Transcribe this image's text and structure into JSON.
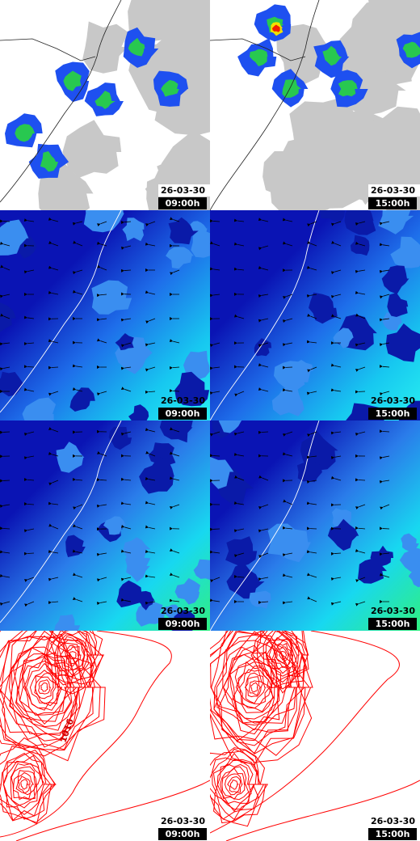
{
  "panels": [
    {
      "date": "26-03-30",
      "time": "09:00h"
    },
    {
      "date": "26-03-30",
      "time": "15:00h"
    },
    {
      "date": "26-03-30",
      "time": "09:00h"
    },
    {
      "date": "26-03-30",
      "time": "15:00h"
    },
    {
      "date": "26-03-30",
      "time": "09:00h"
    },
    {
      "date": "26-03-30",
      "time": "15:00h"
    },
    {
      "date": "26-03-30",
      "time": "09:00h"
    },
    {
      "date": "26-03-30",
      "time": "15:00h"
    }
  ],
  "contour_label": "1016"
}
